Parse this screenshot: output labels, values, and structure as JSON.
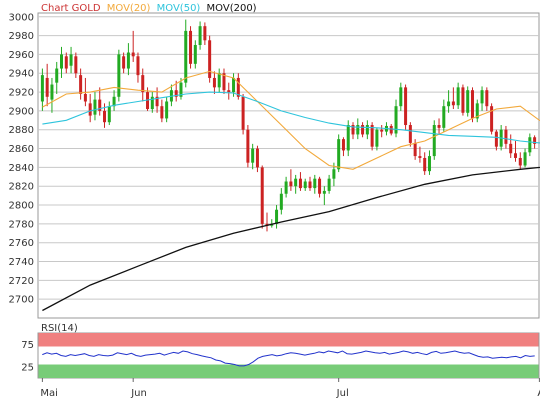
{
  "legend": {
    "chart_label": "Chart GOLD",
    "mov20_label": "MOV(20)",
    "mov50_label": "MOV(50)",
    "mov200_label": "MOV(200)"
  },
  "rsi_label": "RSI(14)",
  "colors": {
    "bull": "#22aa22",
    "bear": "#cc2222",
    "mov20": "#f2a93b",
    "mov50": "#2ec4dc",
    "mov200": "#111111",
    "rsi_line": "#2233cc",
    "rsi_high_zone": "#f08080",
    "rsi_low_zone": "#78cc78",
    "grid": "#c8c8c8",
    "label_red": "#cc3333",
    "axis_text": "#333333"
  },
  "chart_data": [
    {
      "type": "candlestick",
      "title": "Chart GOLD",
      "y_ticks": [
        2700,
        2720,
        2740,
        2760,
        2780,
        2800,
        2820,
        2840,
        2860,
        2880,
        2900,
        2920,
        2940,
        2960,
        2980,
        3000
      ],
      "ylim": [
        2680,
        3004
      ],
      "x_ticks": [
        {
          "label": "Mai",
          "index": 0
        },
        {
          "label": "Jun",
          "index": 19
        },
        {
          "label": "Jul",
          "index": 62
        },
        {
          "label": "Aug",
          "index": 104
        }
      ],
      "candles": [
        {
          "o": 2910,
          "h": 2945,
          "l": 2900,
          "c": 2938
        },
        {
          "o": 2935,
          "h": 2950,
          "l": 2905,
          "c": 2915
        },
        {
          "o": 2912,
          "h": 2935,
          "l": 2898,
          "c": 2928
        },
        {
          "o": 2930,
          "h": 2952,
          "l": 2918,
          "c": 2945
        },
        {
          "o": 2945,
          "h": 2968,
          "l": 2935,
          "c": 2960
        },
        {
          "o": 2958,
          "h": 2962,
          "l": 2940,
          "c": 2945
        },
        {
          "o": 2948,
          "h": 2968,
          "l": 2940,
          "c": 2960
        },
        {
          "o": 2958,
          "h": 2962,
          "l": 2935,
          "c": 2940
        },
        {
          "o": 2938,
          "h": 2945,
          "l": 2912,
          "c": 2918
        },
        {
          "o": 2918,
          "h": 2935,
          "l": 2905,
          "c": 2910
        },
        {
          "o": 2908,
          "h": 2918,
          "l": 2888,
          "c": 2895
        },
        {
          "o": 2896,
          "h": 2920,
          "l": 2890,
          "c": 2912
        },
        {
          "o": 2912,
          "h": 2925,
          "l": 2895,
          "c": 2900
        },
        {
          "o": 2900,
          "h": 2908,
          "l": 2882,
          "c": 2888
        },
        {
          "o": 2888,
          "h": 2910,
          "l": 2885,
          "c": 2905
        },
        {
          "o": 2905,
          "h": 2922,
          "l": 2900,
          "c": 2915
        },
        {
          "o": 2915,
          "h": 2965,
          "l": 2910,
          "c": 2960
        },
        {
          "o": 2958,
          "h": 2962,
          "l": 2940,
          "c": 2945
        },
        {
          "o": 2945,
          "h": 2972,
          "l": 2938,
          "c": 2962
        },
        {
          "o": 2962,
          "h": 2985,
          "l": 2952,
          "c": 2958
        },
        {
          "o": 2958,
          "h": 2962,
          "l": 2930,
          "c": 2938
        },
        {
          "o": 2938,
          "h": 2945,
          "l": 2910,
          "c": 2920
        },
        {
          "o": 2920,
          "h": 2925,
          "l": 2900,
          "c": 2902
        },
        {
          "o": 2902,
          "h": 2920,
          "l": 2898,
          "c": 2915
        },
        {
          "o": 2915,
          "h": 2925,
          "l": 2898,
          "c": 2905
        },
        {
          "o": 2905,
          "h": 2912,
          "l": 2888,
          "c": 2892
        },
        {
          "o": 2892,
          "h": 2915,
          "l": 2888,
          "c": 2910
        },
        {
          "o": 2910,
          "h": 2928,
          "l": 2905,
          "c": 2922
        },
        {
          "o": 2922,
          "h": 2932,
          "l": 2910,
          "c": 2915
        },
        {
          "o": 2915,
          "h": 2935,
          "l": 2912,
          "c": 2930
        },
        {
          "o": 2930,
          "h": 2997,
          "l": 2925,
          "c": 2985
        },
        {
          "o": 2985,
          "h": 2990,
          "l": 2945,
          "c": 2950
        },
        {
          "o": 2950,
          "h": 2975,
          "l": 2945,
          "c": 2970
        },
        {
          "o": 2970,
          "h": 2995,
          "l": 2965,
          "c": 2990
        },
        {
          "o": 2990,
          "h": 2994,
          "l": 2970,
          "c": 2975
        },
        {
          "o": 2975,
          "h": 2980,
          "l": 2930,
          "c": 2935
        },
        {
          "o": 2935,
          "h": 2942,
          "l": 2918,
          "c": 2925
        },
        {
          "o": 2925,
          "h": 2945,
          "l": 2920,
          "c": 2940
        },
        {
          "o": 2940,
          "h": 2945,
          "l": 2918,
          "c": 2922
        },
        {
          "o": 2922,
          "h": 2930,
          "l": 2912,
          "c": 2920
        },
        {
          "o": 2920,
          "h": 2940,
          "l": 2915,
          "c": 2935
        },
        {
          "o": 2935,
          "h": 2940,
          "l": 2912,
          "c": 2915
        },
        {
          "o": 2915,
          "h": 2918,
          "l": 2875,
          "c": 2880
        },
        {
          "o": 2880,
          "h": 2885,
          "l": 2840,
          "c": 2845
        },
        {
          "o": 2845,
          "h": 2865,
          "l": 2838,
          "c": 2860
        },
        {
          "o": 2860,
          "h": 2863,
          "l": 2835,
          "c": 2840
        },
        {
          "o": 2840,
          "h": 2842,
          "l": 2775,
          "c": 2780
        },
        {
          "o": 2780,
          "h": 2792,
          "l": 2772,
          "c": 2778
        },
        {
          "o": 2778,
          "h": 2785,
          "l": 2776,
          "c": 2780
        },
        {
          "o": 2780,
          "h": 2800,
          "l": 2775,
          "c": 2795
        },
        {
          "o": 2795,
          "h": 2818,
          "l": 2790,
          "c": 2812
        },
        {
          "o": 2812,
          "h": 2830,
          "l": 2808,
          "c": 2825
        },
        {
          "o": 2825,
          "h": 2838,
          "l": 2815,
          "c": 2820
        },
        {
          "o": 2820,
          "h": 2832,
          "l": 2812,
          "c": 2828
        },
        {
          "o": 2828,
          "h": 2835,
          "l": 2815,
          "c": 2818
        },
        {
          "o": 2818,
          "h": 2828,
          "l": 2815,
          "c": 2825
        },
        {
          "o": 2825,
          "h": 2830,
          "l": 2815,
          "c": 2818
        },
        {
          "o": 2818,
          "h": 2832,
          "l": 2812,
          "c": 2828
        },
        {
          "o": 2828,
          "h": 2830,
          "l": 2808,
          "c": 2812
        },
        {
          "o": 2812,
          "h": 2820,
          "l": 2800,
          "c": 2815
        },
        {
          "o": 2815,
          "h": 2832,
          "l": 2812,
          "c": 2828
        },
        {
          "o": 2828,
          "h": 2845,
          "l": 2820,
          "c": 2838
        },
        {
          "o": 2838,
          "h": 2875,
          "l": 2835,
          "c": 2870
        },
        {
          "o": 2870,
          "h": 2872,
          "l": 2852,
          "c": 2858
        },
        {
          "o": 2858,
          "h": 2890,
          "l": 2852,
          "c": 2885
        },
        {
          "o": 2885,
          "h": 2888,
          "l": 2870,
          "c": 2875
        },
        {
          "o": 2875,
          "h": 2892,
          "l": 2870,
          "c": 2885
        },
        {
          "o": 2885,
          "h": 2888,
          "l": 2872,
          "c": 2875
        },
        {
          "o": 2875,
          "h": 2890,
          "l": 2870,
          "c": 2885
        },
        {
          "o": 2885,
          "h": 2888,
          "l": 2858,
          "c": 2862
        },
        {
          "o": 2862,
          "h": 2882,
          "l": 2858,
          "c": 2880
        },
        {
          "o": 2880,
          "h": 2885,
          "l": 2872,
          "c": 2878
        },
        {
          "o": 2878,
          "h": 2888,
          "l": 2874,
          "c": 2884
        },
        {
          "o": 2884,
          "h": 2886,
          "l": 2874,
          "c": 2876
        },
        {
          "o": 2876,
          "h": 2912,
          "l": 2872,
          "c": 2905
        },
        {
          "o": 2905,
          "h": 2930,
          "l": 2900,
          "c": 2925
        },
        {
          "o": 2925,
          "h": 2928,
          "l": 2880,
          "c": 2885
        },
        {
          "o": 2885,
          "h": 2888,
          "l": 2862,
          "c": 2866
        },
        {
          "o": 2866,
          "h": 2870,
          "l": 2848,
          "c": 2852
        },
        {
          "o": 2852,
          "h": 2862,
          "l": 2845,
          "c": 2850
        },
        {
          "o": 2850,
          "h": 2856,
          "l": 2832,
          "c": 2836
        },
        {
          "o": 2836,
          "h": 2858,
          "l": 2832,
          "c": 2852
        },
        {
          "o": 2852,
          "h": 2890,
          "l": 2848,
          "c": 2885
        },
        {
          "o": 2885,
          "h": 2892,
          "l": 2876,
          "c": 2882
        },
        {
          "o": 2882,
          "h": 2912,
          "l": 2878,
          "c": 2905
        },
        {
          "o": 2905,
          "h": 2922,
          "l": 2898,
          "c": 2910
        },
        {
          "o": 2910,
          "h": 2925,
          "l": 2902,
          "c": 2906
        },
        {
          "o": 2906,
          "h": 2930,
          "l": 2902,
          "c": 2925
        },
        {
          "o": 2925,
          "h": 2928,
          "l": 2895,
          "c": 2898
        },
        {
          "o": 2898,
          "h": 2926,
          "l": 2894,
          "c": 2922
        },
        {
          "o": 2922,
          "h": 2925,
          "l": 2888,
          "c": 2892
        },
        {
          "o": 2892,
          "h": 2912,
          "l": 2888,
          "c": 2908
        },
        {
          "o": 2908,
          "h": 2926,
          "l": 2900,
          "c": 2922
        },
        {
          "o": 2922,
          "h": 2925,
          "l": 2900,
          "c": 2905
        },
        {
          "o": 2905,
          "h": 2908,
          "l": 2875,
          "c": 2878
        },
        {
          "o": 2878,
          "h": 2880,
          "l": 2858,
          "c": 2862
        },
        {
          "o": 2862,
          "h": 2885,
          "l": 2858,
          "c": 2880
        },
        {
          "o": 2880,
          "h": 2884,
          "l": 2860,
          "c": 2865
        },
        {
          "o": 2865,
          "h": 2875,
          "l": 2850,
          "c": 2855
        },
        {
          "o": 2855,
          "h": 2868,
          "l": 2846,
          "c": 2850
        },
        {
          "o": 2850,
          "h": 2856,
          "l": 2838,
          "c": 2842
        },
        {
          "o": 2842,
          "h": 2860,
          "l": 2840,
          "c": 2856
        },
        {
          "o": 2856,
          "h": 2876,
          "l": 2852,
          "c": 2872
        },
        {
          "o": 2872,
          "h": 2874,
          "l": 2860,
          "c": 2865
        }
      ],
      "series": [
        {
          "name": "MOV(20)",
          "values": [
            [
              0,
              2904
            ],
            [
              5,
              2918
            ],
            [
              10,
              2920
            ],
            [
              15,
              2925
            ],
            [
              20,
              2922
            ],
            [
              25,
              2920
            ],
            [
              30,
              2935
            ],
            [
              35,
              2942
            ],
            [
              40,
              2935
            ],
            [
              45,
              2910
            ],
            [
              50,
              2885
            ],
            [
              55,
              2860
            ],
            [
              60,
              2842
            ],
            [
              65,
              2838
            ],
            [
              70,
              2850
            ],
            [
              75,
              2862
            ],
            [
              80,
              2868
            ],
            [
              85,
              2880
            ],
            [
              90,
              2892
            ],
            [
              95,
              2902
            ],
            [
              100,
              2905
            ],
            [
              104,
              2890
            ],
            [
              108,
              2884
            ],
            [
              112,
              2882
            ],
            [
              116,
              2877
            ]
          ]
        },
        {
          "name": "MOV(50)",
          "values": [
            [
              0,
              2886
            ],
            [
              5,
              2890
            ],
            [
              10,
              2900
            ],
            [
              15,
              2906
            ],
            [
              20,
              2910
            ],
            [
              25,
              2914
            ],
            [
              30,
              2918
            ],
            [
              35,
              2920
            ],
            [
              40,
              2919
            ],
            [
              45,
              2910
            ],
            [
              50,
              2900
            ],
            [
              55,
              2893
            ],
            [
              60,
              2887
            ],
            [
              65,
              2883
            ],
            [
              70,
              2882
            ],
            [
              75,
              2880
            ],
            [
              80,
              2877
            ],
            [
              85,
              2874
            ],
            [
              90,
              2873
            ],
            [
              95,
              2872
            ],
            [
              100,
              2868
            ],
            [
              104,
              2866
            ],
            [
              108,
              2866
            ],
            [
              112,
              2866
            ],
            [
              116,
              2868
            ]
          ]
        },
        {
          "name": "MOV(200)",
          "values": [
            [
              0,
              2688
            ],
            [
              10,
              2715
            ],
            [
              20,
              2735
            ],
            [
              30,
              2755
            ],
            [
              40,
              2770
            ],
            [
              50,
              2782
            ],
            [
              60,
              2793
            ],
            [
              70,
              2808
            ],
            [
              80,
              2822
            ],
            [
              90,
              2832
            ],
            [
              100,
              2838
            ],
            [
              110,
              2843
            ],
            [
              116,
              2850
            ]
          ]
        }
      ]
    },
    {
      "type": "line",
      "title": "RSI(14)",
      "y_ticks": [
        25,
        75
      ],
      "ylim": [
        0,
        100
      ],
      "zones": [
        {
          "from": 70,
          "to": 100
        },
        {
          "from": 0,
          "to": 30
        }
      ],
      "series": [
        {
          "name": "RSI(14)",
          "values": [
            52,
            56,
            53,
            55,
            50,
            48,
            52,
            50,
            52,
            54,
            50,
            48,
            52,
            50,
            49,
            51,
            56,
            54,
            52,
            55,
            50,
            48,
            51,
            52,
            53,
            55,
            51,
            54,
            57,
            55,
            60,
            58,
            54,
            52,
            49,
            47,
            45,
            40,
            38,
            33,
            32,
            30,
            27,
            27,
            30,
            36,
            44,
            48,
            50,
            52,
            49,
            51,
            54,
            56,
            55,
            53,
            51,
            53,
            55,
            58,
            56,
            60,
            58,
            56,
            60,
            54,
            53,
            55,
            57,
            60,
            58,
            56,
            55,
            57,
            53,
            55,
            57,
            60,
            58,
            55,
            57,
            54,
            52,
            57,
            59,
            55,
            56,
            58,
            60,
            57,
            55,
            56,
            52,
            48,
            46,
            47,
            44,
            45,
            46,
            45,
            47,
            48,
            45,
            50,
            48,
            49
          ]
        }
      ]
    }
  ]
}
